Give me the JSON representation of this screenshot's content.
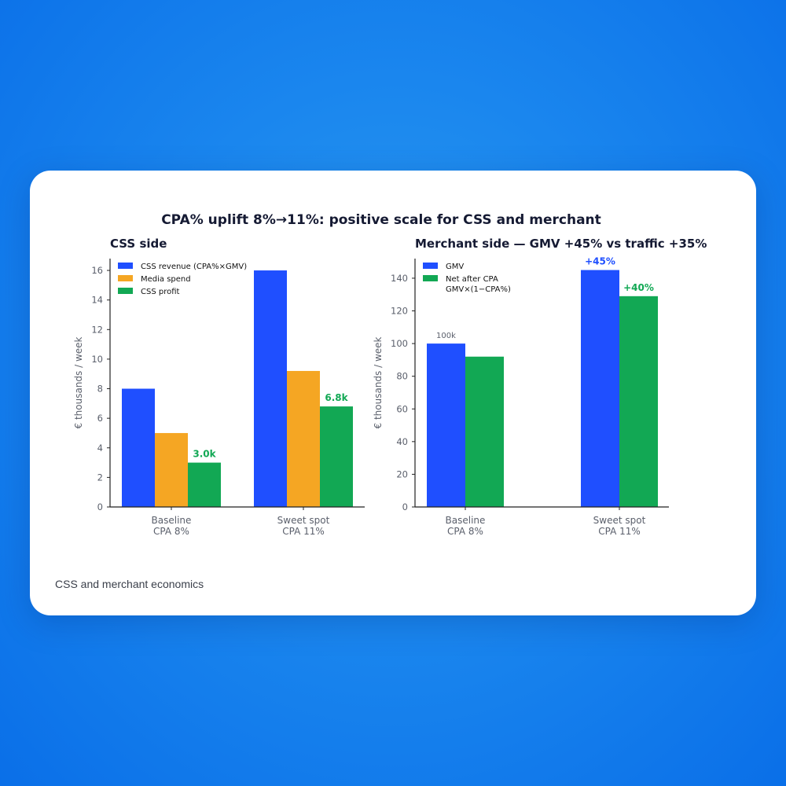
{
  "suptitle": "CPA% uplift 8%→11%: positive scale for CSS and merchant",
  "caption": "CSS and merchant economics",
  "colors": {
    "blue": "#1f4fff",
    "orange": "#f5a623",
    "green": "#12a854",
    "axis_text": "#5a5f6b",
    "title_text": "#151a33"
  },
  "chart_data": [
    {
      "type": "bar",
      "title": "CSS side",
      "ylabel": "€ thousands / week",
      "xlabel": "",
      "categories": [
        "Baseline\nCPA 8%",
        "Sweet spot\nCPA 11%"
      ],
      "ylim": [
        0,
        16.8
      ],
      "yticks": [
        0,
        2,
        4,
        6,
        8,
        10,
        12,
        14,
        16
      ],
      "legend_position": "top-left",
      "series": [
        {
          "name": "CSS revenue (CPA%×GMV)",
          "color": "blue",
          "values": [
            8.0,
            16.0
          ]
        },
        {
          "name": "Media spend",
          "color": "orange",
          "values": [
            5.0,
            9.2
          ]
        },
        {
          "name": "CSS profit",
          "color": "green",
          "values": [
            3.0,
            6.8
          ]
        }
      ],
      "annotations": [
        {
          "series": 2,
          "category": 0,
          "text": "3.0k",
          "color": "green"
        },
        {
          "series": 2,
          "category": 1,
          "text": "6.8k",
          "color": "green"
        }
      ]
    },
    {
      "type": "bar",
      "title": "Merchant side — GMV +45% vs traffic +35%",
      "ylabel": "€ thousands / week",
      "xlabel": "",
      "categories": [
        "Baseline\nCPA 8%",
        "Sweet spot\nCPA 11%"
      ],
      "ylim": [
        0,
        152
      ],
      "yticks": [
        0,
        20,
        40,
        60,
        80,
        100,
        120,
        140
      ],
      "legend_position": "top-left",
      "series": [
        {
          "name": "GMV",
          "color": "blue",
          "values": [
            100,
            145
          ]
        },
        {
          "name": "Net after CPA\nGMV×(1−CPA%)",
          "color": "green",
          "values": [
            92,
            129
          ]
        }
      ],
      "annotations": [
        {
          "series": 0,
          "category": 0,
          "text": "100k",
          "color": "axis_text",
          "small": true
        },
        {
          "series": 0,
          "category": 1,
          "text": "+45%",
          "color": "blue"
        },
        {
          "series": 1,
          "category": 1,
          "text": "+40%",
          "color": "green"
        }
      ]
    }
  ]
}
